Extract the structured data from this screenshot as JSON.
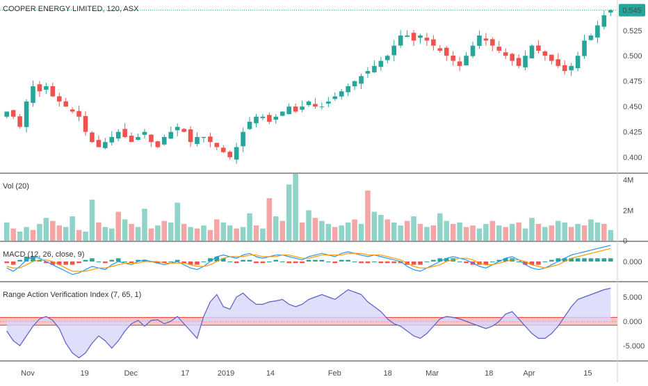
{
  "colors": {
    "up": "#26a69a",
    "down": "#ef5350",
    "vol_up": "#8fd3c9",
    "vol_down": "#f4a6a6",
    "macd_line": "#2196f3",
    "signal_line": "#ff9800",
    "index_line": "#5c5cc8",
    "index_fill": "#d7d7fb",
    "band_line": "#e53935",
    "band_fill": "#f7c6c6",
    "last_price_bg": "#26a69a",
    "separator": "#333333"
  },
  "chart_data": [
    {
      "type": "candlestick",
      "title": "COOPER ENERGY LIMITED, 120, ASX",
      "last_price": 0.545,
      "last_price_label": "0.545",
      "ylim": [
        0.385,
        0.555
      ],
      "y_ticks": [
        "0.525",
        "0.500",
        "0.475",
        "0.450",
        "0.425",
        "0.400"
      ],
      "y_tick_values": [
        0.525,
        0.5,
        0.475,
        0.45,
        0.425,
        0.4
      ],
      "series": [
        {
          "name": "close",
          "values": [
            0.445,
            0.44,
            0.43,
            0.455,
            0.47,
            0.465,
            0.47,
            0.46,
            0.455,
            0.45,
            0.445,
            0.44,
            0.425,
            0.415,
            0.41,
            0.415,
            0.42,
            0.425,
            0.42,
            0.415,
            0.42,
            0.425,
            0.415,
            0.41,
            0.42,
            0.425,
            0.43,
            0.425,
            0.415,
            0.42,
            0.42,
            0.415,
            0.41,
            0.405,
            0.4,
            0.41,
            0.425,
            0.435,
            0.44,
            0.44,
            0.435,
            0.44,
            0.445,
            0.45,
            0.445,
            0.45,
            0.455,
            0.45,
            0.45,
            0.455,
            0.46,
            0.465,
            0.47,
            0.475,
            0.48,
            0.485,
            0.49,
            0.495,
            0.5,
            0.51,
            0.52,
            0.52,
            0.515,
            0.52,
            0.515,
            0.51,
            0.505,
            0.5,
            0.495,
            0.49,
            0.5,
            0.51,
            0.52,
            0.515,
            0.51,
            0.505,
            0.5,
            0.495,
            0.49,
            0.5,
            0.51,
            0.505,
            0.5,
            0.495,
            0.49,
            0.485,
            0.49,
            0.5,
            0.515,
            0.52,
            0.53,
            0.54,
            0.545
          ]
        }
      ],
      "x_ticks": [
        "Nov",
        "19",
        "Dec",
        "17",
        "2019",
        "14",
        "Feb",
        "18",
        "Mar",
        "18",
        "Apr",
        "15"
      ],
      "x_tick_positions": [
        0.045,
        0.137,
        0.212,
        0.3,
        0.366,
        0.438,
        0.542,
        0.628,
        0.7,
        0.792,
        0.857,
        0.952
      ]
    },
    {
      "type": "bar",
      "title": "Vol (20)",
      "ylim": [
        0,
        4400000
      ],
      "y_ticks": [
        "4M",
        "2M",
        "0"
      ],
      "y_tick_values": [
        4000000,
        2000000,
        0
      ],
      "values": [
        1200000,
        800000,
        600000,
        900000,
        700000,
        1100000,
        1500000,
        1300000,
        1000000,
        900000,
        1600000,
        700000,
        600000,
        2700000,
        1200000,
        900000,
        800000,
        1900000,
        1400000,
        1100000,
        900000,
        2100000,
        800000,
        1000000,
        1300000,
        1200000,
        2500000,
        1100000,
        900000,
        800000,
        1000000,
        700000,
        1400000,
        1200000,
        1000000,
        800000,
        900000,
        1800000,
        1000000,
        800000,
        2800000,
        1600000,
        1300000,
        3700000,
        4400000,
        1200000,
        2000000,
        1500000,
        1300000,
        1100000,
        900000,
        1000000,
        1200000,
        1400000,
        1100000,
        3300000,
        1900000,
        1700000,
        1400000,
        1200000,
        1000000,
        1300000,
        1600000,
        1100000,
        900000,
        1000000,
        1800000,
        1300000,
        1100000,
        1200000,
        900000,
        1000000,
        800000,
        1100000,
        1300000,
        1000000,
        900000,
        1100000,
        1200000,
        800000,
        1500000,
        1100000,
        900000,
        1000000,
        1300000,
        1200000,
        900000,
        1100000,
        1000000,
        1400000,
        1200000,
        1100000,
        700000
      ],
      "up_flags": [
        1,
        0,
        1,
        1,
        0,
        1,
        1,
        0,
        0,
        1,
        1,
        0,
        1,
        1,
        0,
        1,
        1,
        0,
        1,
        0,
        1,
        1,
        0,
        1,
        0,
        1,
        1,
        0,
        1,
        0,
        1,
        0,
        0,
        1,
        1,
        0,
        1,
        1,
        0,
        1,
        0,
        1,
        0,
        1,
        1,
        0,
        1,
        0,
        1,
        1,
        0,
        1,
        1,
        0,
        1,
        0,
        1,
        1,
        0,
        1,
        1,
        0,
        1,
        0,
        1,
        0,
        1,
        1,
        0,
        1,
        0,
        0,
        1,
        1,
        0,
        1,
        0,
        1,
        0,
        1,
        1,
        0,
        1,
        0,
        1,
        1,
        0,
        1,
        0,
        1,
        1,
        0,
        1
      ]
    },
    {
      "type": "line",
      "title": "MACD (12, 26, close, 9)",
      "ylim": [
        -0.012,
        0.012
      ],
      "y_ticks": [
        "0.000"
      ],
      "y_tick_values": [
        0
      ],
      "series": [
        {
          "name": "MACD",
          "values": [
            -0.004,
            -0.006,
            -0.003,
            0.001,
            0.003,
            0.002,
            0.0,
            -0.002,
            -0.004,
            -0.006,
            -0.008,
            -0.007,
            -0.005,
            -0.003,
            -0.004,
            -0.005,
            -0.002,
            0.0,
            -0.001,
            -0.002,
            0.0,
            0.001,
            0.0,
            -0.001,
            -0.002,
            -0.001,
            0.0,
            -0.002,
            -0.004,
            -0.005,
            -0.003,
            0.0,
            0.003,
            0.004,
            0.003,
            0.002,
            0.004,
            0.005,
            0.003,
            0.002,
            0.003,
            0.004,
            0.004,
            0.003,
            0.002,
            0.001,
            0.003,
            0.004,
            0.005,
            0.004,
            0.003,
            0.005,
            0.006,
            0.005,
            0.004,
            0.003,
            0.004,
            0.003,
            0.002,
            0.001,
            0.0,
            -0.003,
            -0.005,
            -0.006,
            -0.004,
            -0.002,
            0.0,
            0.002,
            0.003,
            0.002,
            0.001,
            -0.001,
            -0.003,
            -0.004,
            -0.002,
            0.0,
            0.002,
            0.003,
            0.001,
            -0.002,
            -0.004,
            -0.005,
            -0.004,
            -0.002,
            0.0,
            0.002,
            0.004,
            0.005,
            0.006,
            0.007,
            0.008,
            0.009,
            0.01
          ]
        },
        {
          "name": "Signal",
          "values": [
            -0.003,
            -0.004,
            -0.004,
            -0.002,
            0.0,
            0.001,
            0.001,
            0.0,
            -0.002,
            -0.004,
            -0.006,
            -0.006,
            -0.006,
            -0.005,
            -0.004,
            -0.004,
            -0.003,
            -0.002,
            -0.001,
            -0.001,
            -0.001,
            0.0,
            0.0,
            0.0,
            -0.001,
            -0.001,
            -0.001,
            -0.001,
            -0.002,
            -0.003,
            -0.003,
            -0.002,
            0.0,
            0.002,
            0.003,
            0.003,
            0.003,
            0.004,
            0.004,
            0.003,
            0.003,
            0.003,
            0.004,
            0.004,
            0.003,
            0.002,
            0.002,
            0.003,
            0.004,
            0.004,
            0.004,
            0.004,
            0.005,
            0.005,
            0.005,
            0.004,
            0.004,
            0.004,
            0.003,
            0.002,
            0.001,
            -0.001,
            -0.003,
            -0.004,
            -0.004,
            -0.003,
            -0.002,
            0.0,
            0.001,
            0.002,
            0.002,
            0.001,
            -0.001,
            -0.002,
            -0.002,
            -0.001,
            0.0,
            0.001,
            0.001,
            0.0,
            -0.002,
            -0.003,
            -0.004,
            -0.003,
            -0.002,
            0.0,
            0.002,
            0.003,
            0.004,
            0.005,
            0.006,
            0.007,
            0.008
          ]
        }
      ],
      "histogram": [
        -0.001,
        -0.002,
        0.001,
        0.003,
        0.003,
        0.001,
        -0.001,
        -0.002,
        -0.002,
        -0.002,
        -0.002,
        -0.001,
        0.001,
        0.002,
        0.0,
        -0.001,
        0.001,
        0.002,
        0.0,
        -0.001,
        0.001,
        0.001,
        0.0,
        -0.001,
        -0.001,
        0.0,
        0.001,
        -0.001,
        -0.002,
        -0.002,
        0.0,
        0.002,
        0.003,
        0.002,
        0.0,
        -0.001,
        0.001,
        0.001,
        -0.001,
        -0.001,
        0.0,
        0.001,
        0.0,
        -0.001,
        -0.001,
        -0.001,
        0.001,
        0.001,
        0.001,
        0.0,
        -0.001,
        0.001,
        0.001,
        0.0,
        -0.001,
        -0.001,
        0.0,
        -0.001,
        -0.001,
        -0.001,
        -0.001,
        -0.002,
        -0.002,
        -0.002,
        0.0,
        0.001,
        0.002,
        0.002,
        0.002,
        0.0,
        -0.001,
        -0.002,
        -0.002,
        -0.002,
        0.0,
        0.001,
        0.002,
        0.002,
        0.0,
        -0.002,
        -0.002,
        -0.002,
        0.0,
        0.001,
        0.002,
        0.002,
        0.002,
        0.002,
        0.002,
        0.002,
        0.002,
        0.002,
        0.002
      ]
    },
    {
      "type": "area",
      "title": "Range Action Verification Index (7, 65, 1)",
      "ylim": [
        -8,
        8
      ],
      "y_ticks": [
        "5.000",
        "0.000",
        "-5.000"
      ],
      "y_tick_values": [
        5,
        0,
        -5
      ],
      "band": [
        -0.8,
        0.8
      ],
      "series": [
        {
          "name": "RAVI",
          "values": [
            -2.0,
            -4.0,
            -5.0,
            -3.0,
            -1.0,
            0.5,
            1.0,
            0.2,
            -1.5,
            -4.5,
            -6.5,
            -7.5,
            -6.5,
            -4.5,
            -3.0,
            -4.0,
            -5.5,
            -4.0,
            -2.0,
            -0.5,
            0.2,
            -1.0,
            0.2,
            0.3,
            -0.5,
            0.0,
            1.0,
            -0.5,
            -2.0,
            -3.5,
            1.0,
            4.0,
            5.5,
            3.0,
            2.5,
            5.0,
            5.8,
            4.5,
            3.5,
            3.5,
            4.0,
            4.2,
            4.5,
            3.5,
            3.0,
            3.5,
            4.5,
            5.0,
            5.5,
            5.0,
            4.5,
            5.5,
            6.5,
            6.0,
            5.5,
            4.0,
            3.0,
            2.0,
            0.5,
            -0.5,
            -1.0,
            -2.0,
            -3.0,
            -3.5,
            -2.5,
            -1.0,
            0.5,
            1.0,
            0.8,
            0.5,
            0.0,
            -0.5,
            -1.0,
            -1.5,
            -1.0,
            0.0,
            1.5,
            2.0,
            0.5,
            -1.0,
            -2.5,
            -3.5,
            -3.5,
            -2.5,
            -1.0,
            1.0,
            3.0,
            4.5,
            5.0,
            5.5,
            6.0,
            6.5,
            6.8
          ]
        }
      ]
    }
  ]
}
